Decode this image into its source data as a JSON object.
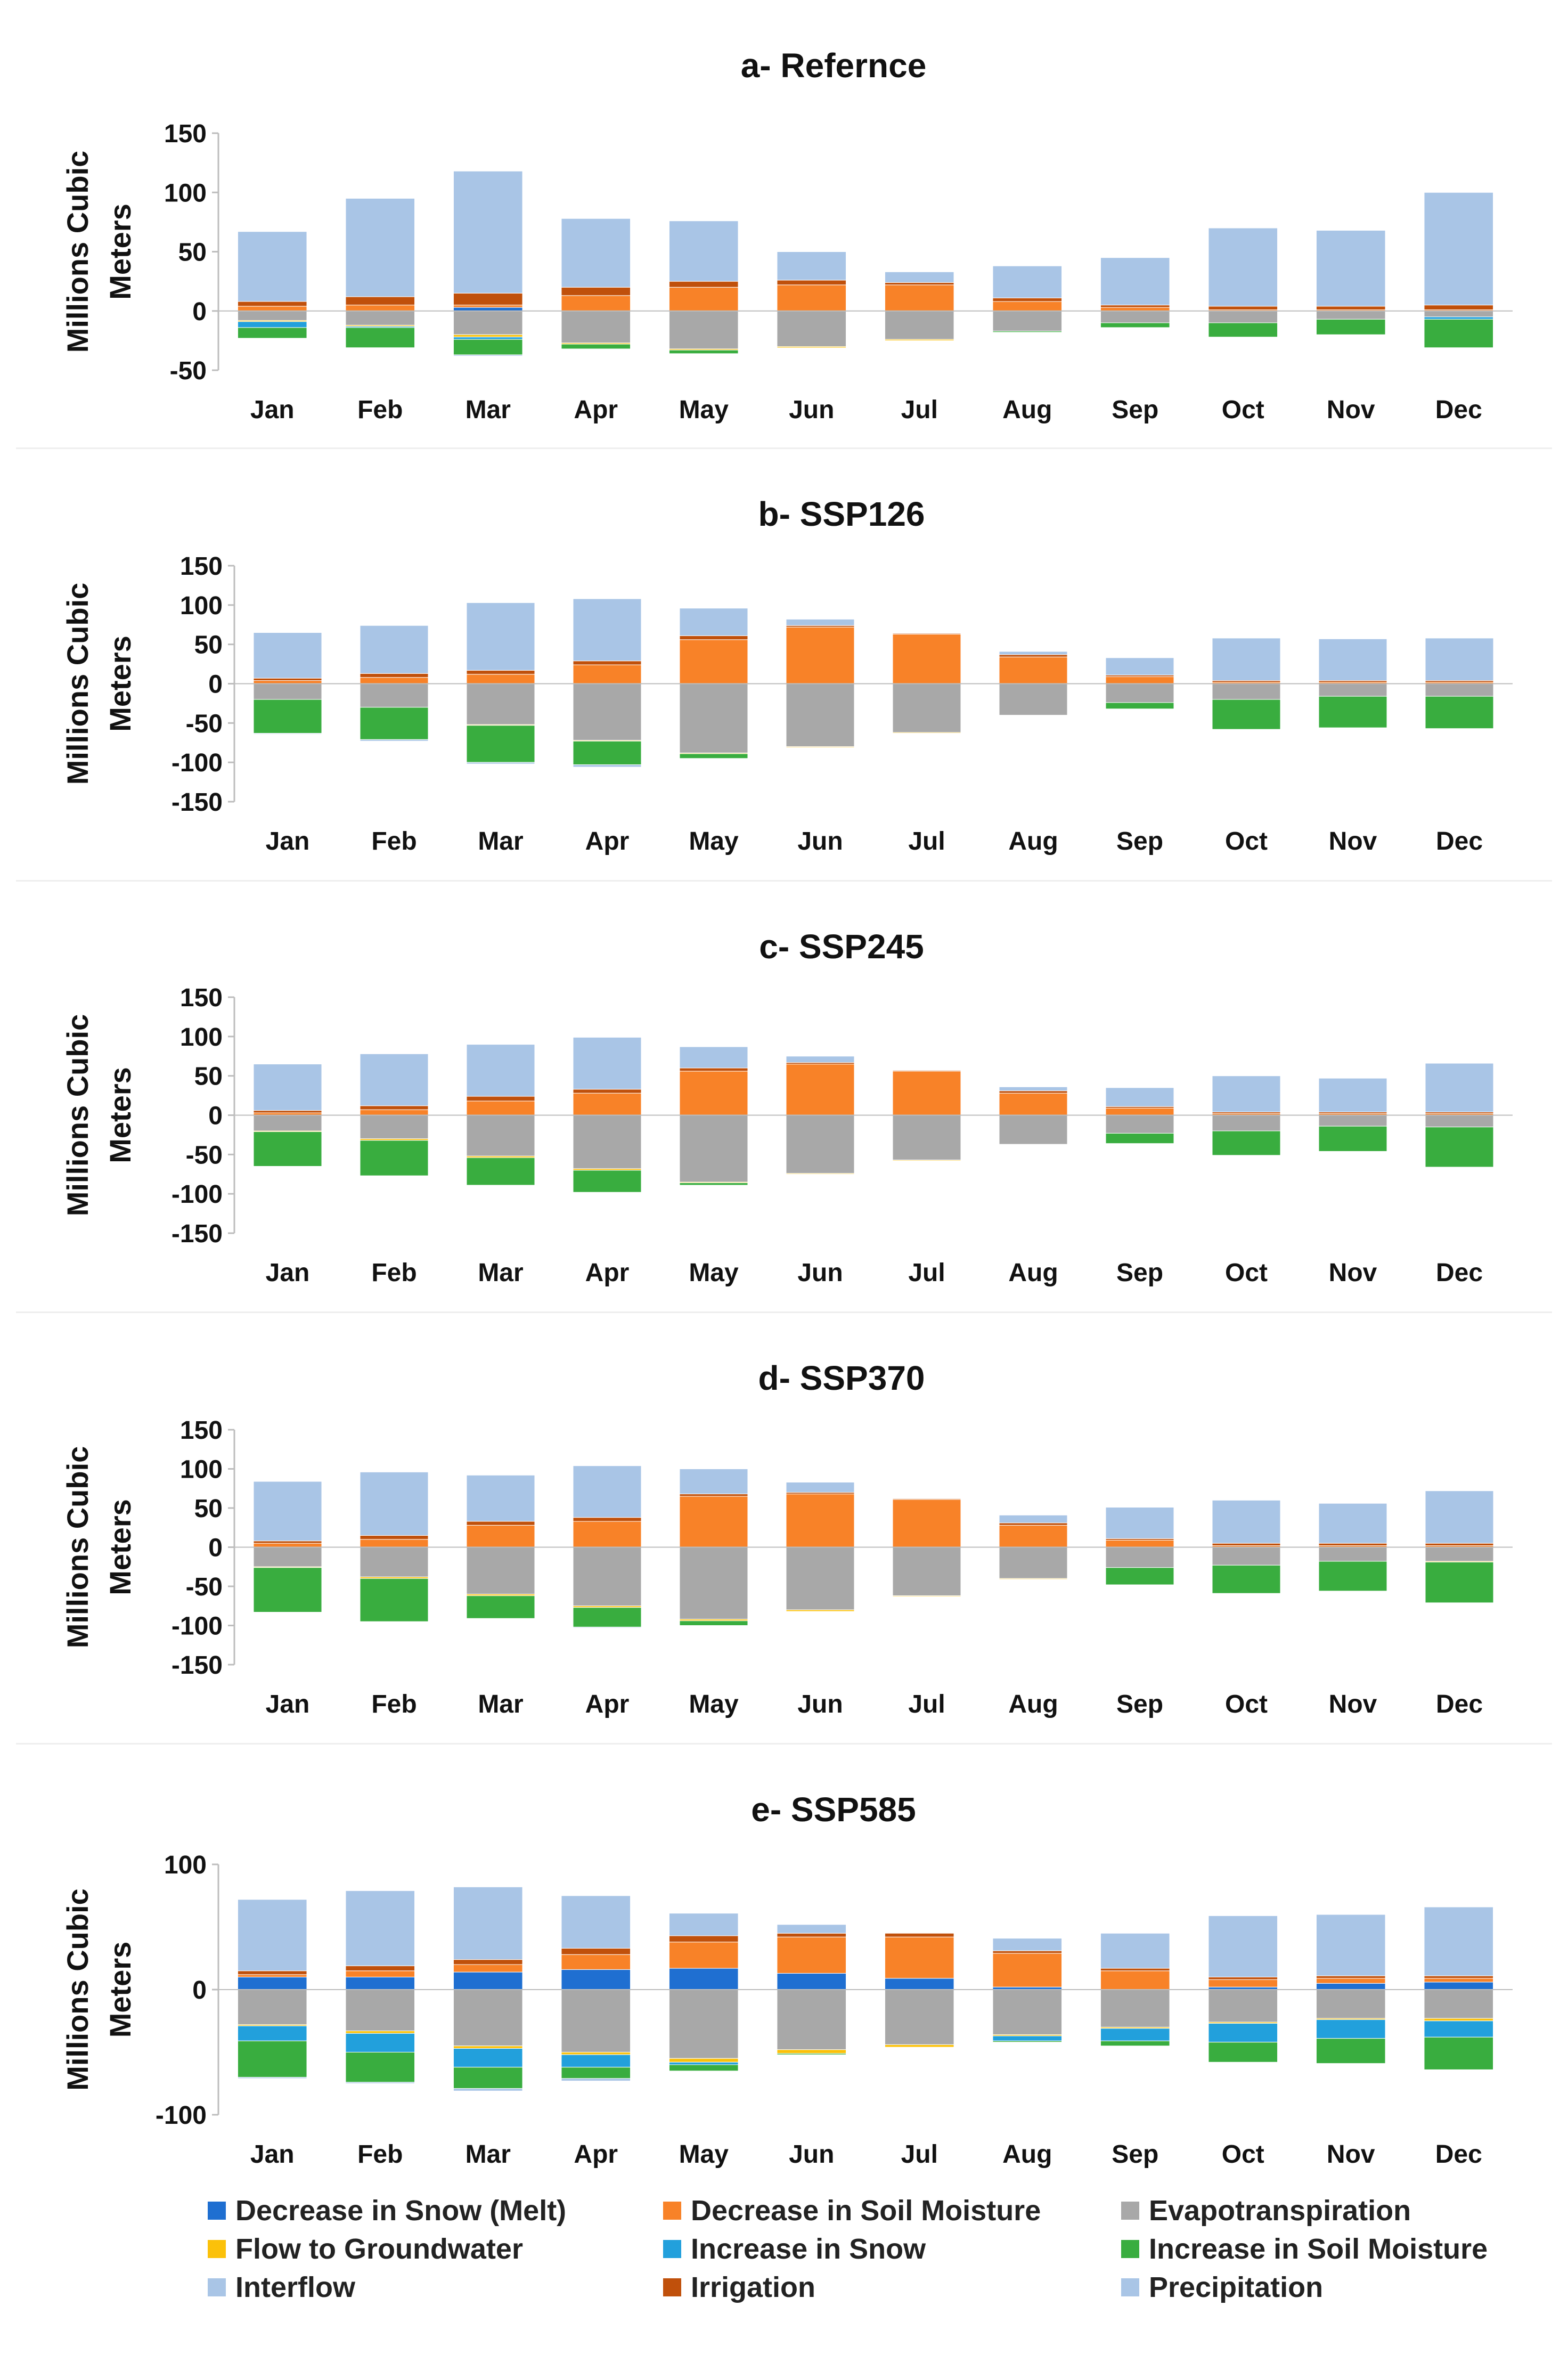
{
  "months": [
    "Jan",
    "Feb",
    "Mar",
    "Apr",
    "May",
    "Jun",
    "Jul",
    "Aug",
    "Sep",
    "Oct",
    "Nov",
    "Dec"
  ],
  "components": [
    {
      "key": "snow_dec",
      "name": "Decrease in Snow (Melt)",
      "color": "#1f6fd1"
    },
    {
      "key": "soil_dec",
      "name": "Decrease in Soil Moisture",
      "color": "#f88228"
    },
    {
      "key": "et",
      "name": "Evapotranspiration",
      "color": "#a8a8a8"
    },
    {
      "key": "gw",
      "name": "Flow to Groundwater",
      "color": "#fbc10a"
    },
    {
      "key": "snow_inc",
      "name": "Increase in Snow",
      "color": "#22a0dc"
    },
    {
      "key": "soil_inc",
      "name": "Increase in Soil Moisture",
      "color": "#39ad3f"
    },
    {
      "key": "interflow",
      "name": "Interflow",
      "color": "#a9c5e6"
    },
    {
      "key": "irr",
      "name": "Irrigation",
      "color": "#c0500b"
    },
    {
      "key": "precip",
      "name": "Precipitation",
      "color": "#a9c5e6"
    }
  ],
  "chart_data": [
    {
      "type": "bar",
      "title": "a- Refernce",
      "ylabel": "Millions Cubic Meters",
      "ylim": [
        -50,
        150
      ],
      "yticks": [
        -50,
        0,
        50,
        100,
        150
      ],
      "series": [
        {
          "key": "snow_dec",
          "values": [
            0,
            0,
            3,
            0,
            0,
            0,
            0,
            0,
            0,
            0,
            0,
            0
          ]
        },
        {
          "key": "soil_dec",
          "values": [
            4,
            5,
            2,
            13,
            20,
            22,
            22,
            8,
            3,
            1,
            1,
            1
          ]
        },
        {
          "key": "irr",
          "values": [
            4,
            7,
            10,
            7,
            5,
            4,
            2,
            3,
            2,
            3,
            3,
            4
          ]
        },
        {
          "key": "precip",
          "values": [
            59,
            83,
            103,
            58,
            51,
            24,
            9,
            27,
            40,
            66,
            64,
            95
          ]
        },
        {
          "key": "et",
          "values": [
            -8,
            -12,
            -20,
            -27,
            -32,
            -30,
            -24,
            -17,
            -10,
            -10,
            -7,
            -5
          ]
        },
        {
          "key": "gw",
          "values": [
            -1,
            -1,
            -2,
            -1,
            -1,
            -1,
            -1,
            0,
            0,
            0,
            0,
            0
          ]
        },
        {
          "key": "snow_inc",
          "values": [
            -5,
            -1,
            -2,
            0,
            0,
            0,
            0,
            0,
            0,
            0,
            0,
            -2
          ]
        },
        {
          "key": "soil_inc",
          "values": [
            -9,
            -17,
            -13,
            -4,
            -3,
            0,
            0,
            -1,
            -4,
            -12,
            -13,
            -24
          ]
        },
        {
          "key": "interflow",
          "values": [
            0,
            0,
            -1,
            0,
            0,
            0,
            0,
            0,
            0,
            0,
            0,
            0
          ]
        }
      ]
    },
    {
      "type": "bar",
      "title": "b- SSP126",
      "ylabel": "Millions Cubic Meters",
      "ylim": [
        -150,
        150
      ],
      "yticks": [
        -150,
        -100,
        -50,
        0,
        50,
        100,
        150
      ],
      "series": [
        {
          "key": "snow_dec",
          "values": [
            0,
            0,
            0,
            0,
            0,
            0,
            0,
            0,
            0,
            0,
            0,
            0
          ]
        },
        {
          "key": "soil_dec",
          "values": [
            4,
            8,
            12,
            24,
            56,
            72,
            63,
            34,
            9,
            2,
            2,
            2
          ]
        },
        {
          "key": "irr",
          "values": [
            3,
            5,
            5,
            5,
            5,
            2,
            1,
            3,
            2,
            2,
            2,
            2
          ]
        },
        {
          "key": "precip",
          "values": [
            58,
            61,
            86,
            79,
            35,
            8,
            0,
            4,
            22,
            54,
            53,
            54
          ]
        },
        {
          "key": "et",
          "values": [
            -20,
            -30,
            -52,
            -72,
            -88,
            -80,
            -62,
            -40,
            -24,
            -20,
            -16,
            -16
          ]
        },
        {
          "key": "gw",
          "values": [
            0,
            0,
            -1,
            -1,
            -1,
            -1,
            -1,
            0,
            0,
            0,
            0,
            0
          ]
        },
        {
          "key": "snow_inc",
          "values": [
            0,
            0,
            0,
            0,
            0,
            0,
            0,
            0,
            0,
            0,
            0,
            0
          ]
        },
        {
          "key": "soil_inc",
          "values": [
            -43,
            -41,
            -47,
            -30,
            -6,
            0,
            0,
            0,
            -8,
            -38,
            -40,
            -41
          ]
        },
        {
          "key": "interflow",
          "values": [
            -1,
            -2,
            -2,
            -3,
            0,
            0,
            0,
            0,
            0,
            0,
            0,
            0
          ]
        }
      ]
    },
    {
      "type": "bar",
      "title": "c- SSP245",
      "ylabel": "Millions Cubic Meters",
      "ylim": [
        -150,
        150
      ],
      "yticks": [
        -150,
        -100,
        -50,
        0,
        50,
        100,
        150
      ],
      "series": [
        {
          "key": "snow_dec",
          "values": [
            0,
            0,
            0,
            0,
            0,
            0,
            0,
            0,
            0,
            0,
            0,
            0
          ]
        },
        {
          "key": "soil_dec",
          "values": [
            3,
            7,
            18,
            28,
            56,
            65,
            56,
            28,
            9,
            2,
            2,
            2
          ]
        },
        {
          "key": "irr",
          "values": [
            3,
            5,
            6,
            5,
            4,
            2,
            1,
            3,
            2,
            2,
            2,
            2
          ]
        },
        {
          "key": "precip",
          "values": [
            59,
            66,
            66,
            66,
            27,
            8,
            0,
            5,
            24,
            46,
            43,
            62
          ]
        },
        {
          "key": "et",
          "values": [
            -20,
            -30,
            -52,
            -68,
            -85,
            -74,
            -57,
            -37,
            -23,
            -20,
            -14,
            -15
          ]
        },
        {
          "key": "gw",
          "values": [
            -1,
            -2,
            -2,
            -2,
            -1,
            -1,
            -1,
            0,
            0,
            0,
            0,
            0
          ]
        },
        {
          "key": "snow_inc",
          "values": [
            0,
            0,
            0,
            0,
            0,
            0,
            0,
            0,
            0,
            0,
            0,
            0
          ]
        },
        {
          "key": "soil_inc",
          "values": [
            -44,
            -45,
            -35,
            -28,
            -3,
            0,
            0,
            0,
            -13,
            -31,
            -32,
            -51
          ]
        },
        {
          "key": "interflow",
          "values": [
            0,
            0,
            0,
            0,
            0,
            0,
            0,
            0,
            0,
            0,
            0,
            0
          ]
        }
      ]
    },
    {
      "type": "bar",
      "title": "d- SSP370",
      "ylabel": "Millions Cubic Meters",
      "ylim": [
        -150,
        150
      ],
      "yticks": [
        -150,
        -100,
        -50,
        0,
        50,
        100,
        150
      ],
      "series": [
        {
          "key": "snow_dec",
          "values": [
            0,
            0,
            0,
            0,
            0,
            0,
            0,
            0,
            0,
            0,
            0,
            0
          ]
        },
        {
          "key": "soil_dec",
          "values": [
            5,
            10,
            28,
            33,
            65,
            68,
            61,
            28,
            9,
            2,
            2,
            2
          ]
        },
        {
          "key": "irr",
          "values": [
            3,
            5,
            5,
            5,
            3,
            2,
            1,
            3,
            2,
            3,
            3,
            3
          ]
        },
        {
          "key": "precip",
          "values": [
            76,
            81,
            59,
            66,
            32,
            13,
            0,
            10,
            40,
            55,
            51,
            67
          ]
        },
        {
          "key": "et",
          "values": [
            -25,
            -38,
            -60,
            -75,
            -92,
            -80,
            -62,
            -40,
            -26,
            -23,
            -18,
            -18
          ]
        },
        {
          "key": "gw",
          "values": [
            -1,
            -2,
            -2,
            -2,
            -2,
            -2,
            -1,
            -1,
            0,
            0,
            0,
            -1
          ]
        },
        {
          "key": "snow_inc",
          "values": [
            0,
            0,
            0,
            0,
            0,
            0,
            0,
            0,
            0,
            0,
            0,
            0
          ]
        },
        {
          "key": "soil_inc",
          "values": [
            -57,
            -55,
            -29,
            -25,
            -6,
            0,
            0,
            0,
            -22,
            -36,
            -38,
            -52
          ]
        },
        {
          "key": "interflow",
          "values": [
            0,
            0,
            0,
            -1,
            0,
            0,
            0,
            0,
            0,
            0,
            0,
            0
          ]
        }
      ]
    },
    {
      "type": "bar",
      "title": "e- SSP585",
      "ylabel": "Millions Cubic Meters",
      "ylim": [
        -100,
        100
      ],
      "yticks": [
        -100,
        0,
        100
      ],
      "series": [
        {
          "key": "snow_dec",
          "values": [
            10,
            10,
            14,
            16,
            17,
            13,
            9,
            2,
            0,
            2,
            5,
            6
          ]
        },
        {
          "key": "soil_dec",
          "values": [
            2,
            5,
            6,
            12,
            21,
            29,
            33,
            27,
            15,
            6,
            4,
            3
          ]
        },
        {
          "key": "irr",
          "values": [
            3,
            4,
            4,
            5,
            5,
            3,
            3,
            2,
            2,
            2,
            2,
            2
          ]
        },
        {
          "key": "precip",
          "values": [
            57,
            60,
            58,
            42,
            18,
            7,
            0,
            10,
            28,
            49,
            49,
            55
          ]
        },
        {
          "key": "et",
          "values": [
            -28,
            -33,
            -45,
            -50,
            -55,
            -48,
            -44,
            -36,
            -30,
            -26,
            -23,
            -23
          ]
        },
        {
          "key": "gw",
          "values": [
            -1,
            -2,
            -2,
            -2,
            -3,
            -3,
            -2,
            -1,
            -1,
            -1,
            -1,
            -2
          ]
        },
        {
          "key": "snow_inc",
          "values": [
            -12,
            -15,
            -15,
            -10,
            -2,
            0,
            0,
            -4,
            -10,
            -15,
            -15,
            -13
          ]
        },
        {
          "key": "soil_inc",
          "values": [
            -29,
            -24,
            -17,
            -9,
            -5,
            -1,
            0,
            -1,
            -4,
            -16,
            -20,
            -26
          ]
        },
        {
          "key": "interflow",
          "values": [
            -1,
            -1,
            -2,
            -2,
            0,
            0,
            0,
            0,
            0,
            0,
            0,
            0
          ]
        }
      ]
    }
  ]
}
